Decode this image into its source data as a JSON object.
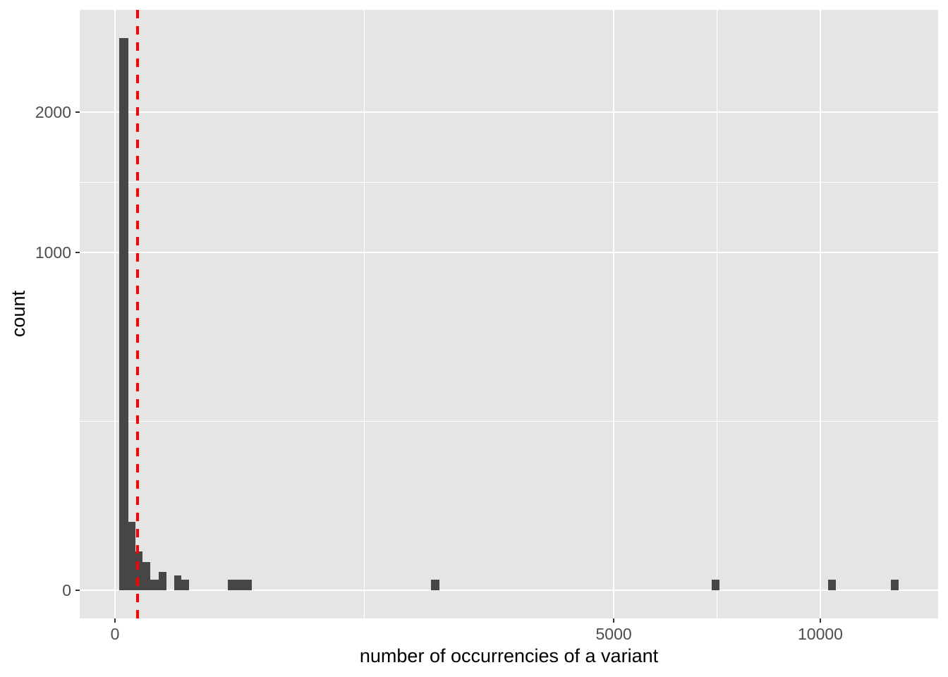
{
  "chart_data": {
    "type": "bar",
    "subtype": "histogram",
    "title": "",
    "xlabel": "number of occurrencies of a variant",
    "ylabel": "count",
    "x_scale": "sqrt",
    "y_scale": "sqrt",
    "grid": true,
    "legend": "none",
    "x_axis": {
      "ticks": [
        {
          "value": 0,
          "label": "0"
        },
        {
          "value": 5000,
          "label": "5000"
        },
        {
          "value": 10000,
          "label": "10000"
        }
      ],
      "minor_gridlines": [
        1250,
        7286
      ],
      "approx_max_value": 13600
    },
    "y_axis": {
      "ticks": [
        {
          "value": 0,
          "label": "0"
        },
        {
          "value": 1000,
          "label": "1000"
        },
        {
          "value": 2000,
          "label": "2000"
        }
      ],
      "minor_gridlines": [
        250,
        1457
      ],
      "approx_max_value": 2950
    },
    "bars": [
      {
        "from": 0.4,
        "to": 3.5,
        "count": 2670
      },
      {
        "from": 3.5,
        "to": 8.2,
        "count": 41
      },
      {
        "from": 8.2,
        "to": 15,
        "count": 13
      },
      {
        "from": 15,
        "to": 25,
        "count": 7
      },
      {
        "from": 25,
        "to": 38,
        "count": 1
      },
      {
        "from": 38,
        "to": 54,
        "count": 3
      },
      {
        "from": 70,
        "to": 88,
        "count": 2
      },
      {
        "from": 88,
        "to": 111,
        "count": 1
      },
      {
        "from": 257,
        "to": 375,
        "count": 1
      },
      {
        "from": 2007,
        "to": 2119,
        "count": 1
      },
      {
        "from": 7157,
        "to": 7344,
        "count": 1
      },
      {
        "from": 10221,
        "to": 10445,
        "count": 1
      },
      {
        "from": 12093,
        "to": 12343,
        "count": 1
      }
    ],
    "reference_line": {
      "orientation": "vertical",
      "value": 10,
      "style": "dashed",
      "color": "#FF0000"
    },
    "colors": {
      "bar_fill": "#464646",
      "panel_background": "#E5E5E5",
      "gridline": "#FFFFFF",
      "tick_text": "#4D4D4D",
      "axis_title_text": "#000000",
      "tick_mark": "#333333",
      "reference_line": "#FF0000",
      "figure_background": "#FFFFFF"
    }
  }
}
